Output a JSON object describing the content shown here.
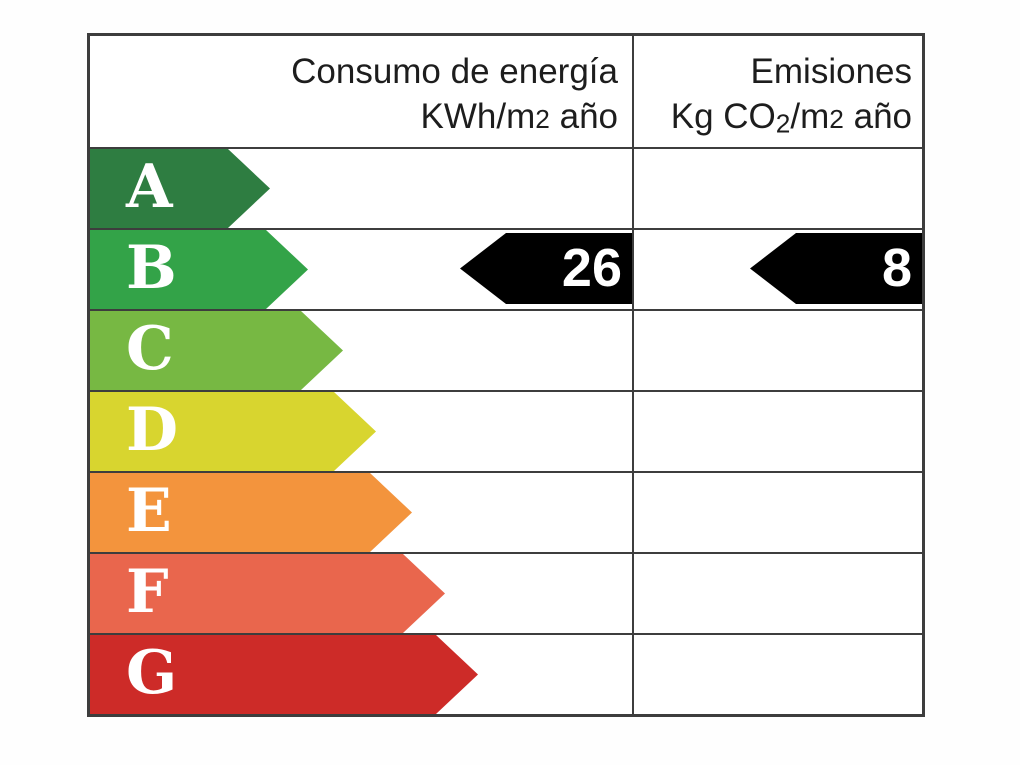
{
  "table": {
    "border_color": "#3d3d3d",
    "header": {
      "consumption_col": {
        "line1": "Consumo de energía",
        "unit_prefix": "KWh/m",
        "unit_exp": "2",
        "unit_suffix": " año"
      },
      "emissions_col": {
        "line1": "Emisiones",
        "unit_prefix": "Kg CO",
        "unit_sub": "2",
        "unit_mid": "/m",
        "unit_exp": "2",
        "unit_suffix": " año"
      }
    },
    "ratings": [
      {
        "letter": "A",
        "color": "#2e7d41"
      },
      {
        "letter": "B",
        "color": "#33a348"
      },
      {
        "letter": "C",
        "color": "#77b843"
      },
      {
        "letter": "D",
        "color": "#d8d52f"
      },
      {
        "letter": "E",
        "color": "#f3943d"
      },
      {
        "letter": "F",
        "color": "#e9664d"
      },
      {
        "letter": "G",
        "color": "#cd2b28"
      }
    ],
    "markers": {
      "color": "#000000",
      "text_color": "#ffffff",
      "rating": "B",
      "consumption_value": "26",
      "emissions_value": "8"
    }
  },
  "chart_data": {
    "type": "bar",
    "categories": [
      "A",
      "B",
      "C",
      "D",
      "E",
      "F",
      "G"
    ],
    "series": [
      {
        "name": "Consumo de energía KWh/m2 año",
        "rating": "B",
        "value": 26
      },
      {
        "name": "Emisiones Kg CO2/m2 año",
        "rating": "B",
        "value": 8
      }
    ],
    "legend_position": "none",
    "grid": false
  }
}
